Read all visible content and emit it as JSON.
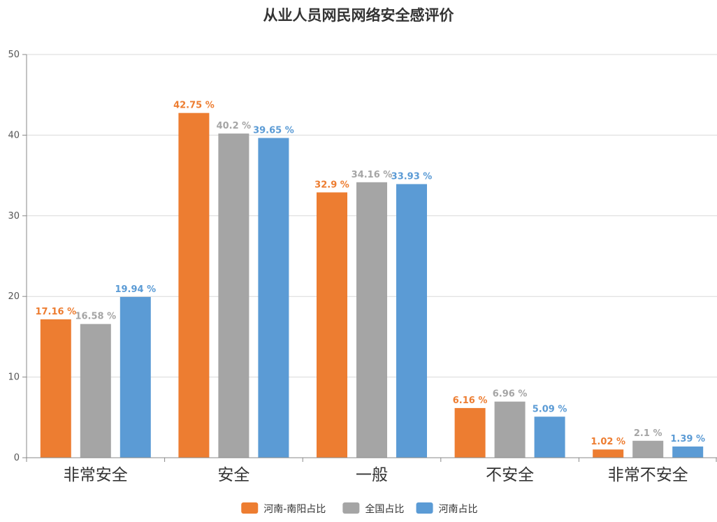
{
  "chart_data": {
    "type": "bar",
    "title": "从业人员网民网络安全感评价",
    "xlabel": "",
    "ylabel": "",
    "categories": [
      "非常安全",
      "安全",
      "一般",
      "不安全",
      "非常不安全"
    ],
    "series": [
      {
        "name": "河南-南阳占比",
        "color": "#ED7D31",
        "values": [
          17.16,
          42.75,
          32.9,
          6.16,
          1.02
        ],
        "labels": [
          "17.16 %",
          "42.75 %",
          "32.9 %",
          "6.16 %",
          "1.02 %"
        ]
      },
      {
        "name": "全国占比",
        "color": "#A5A5A5",
        "values": [
          16.58,
          40.2,
          34.16,
          6.96,
          2.1
        ],
        "labels": [
          "16.58 %",
          "40.2 %",
          "34.16 %",
          "6.96 %",
          "2.1 %"
        ]
      },
      {
        "name": "河南占比",
        "color": "#5B9BD5",
        "values": [
          19.94,
          39.65,
          33.93,
          5.09,
          1.39
        ],
        "labels": [
          "19.94 %",
          "39.65 %",
          "33.93 %",
          "5.09 %",
          "1.39 %"
        ]
      }
    ],
    "ylim": [
      0,
      50
    ],
    "yticks": [
      "0",
      "10",
      "20",
      "30",
      "40",
      "50"
    ],
    "grid": true,
    "legend_position": "bottom"
  }
}
